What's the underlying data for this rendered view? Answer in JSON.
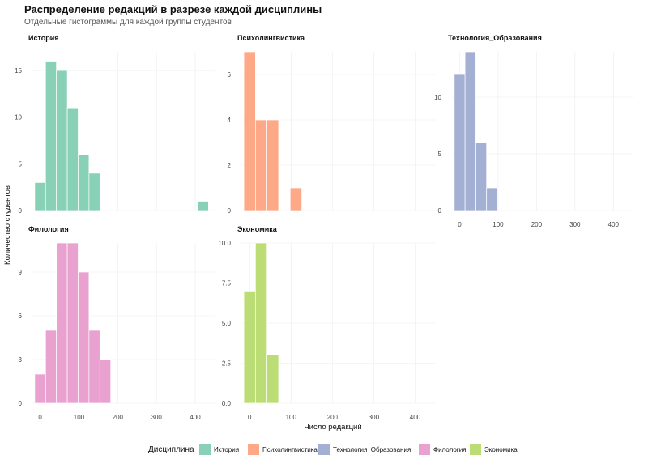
{
  "chart_data": {
    "type": "bar",
    "title": "Распределение редакций в разрезе каждой дисциплины",
    "subtitle": "Отдельные гистограммы для каждой группы студентов",
    "xlabel": "Число редакций",
    "ylabel": "Количество студентов",
    "x_ticks": [
      0,
      100,
      200,
      300,
      400
    ],
    "xlim": [
      -20,
      450
    ],
    "bin_width": 28,
    "grid": true,
    "legend": {
      "title": "Дисциплина",
      "position": "bottom",
      "entries": [
        "История",
        "Психолингвистика",
        "Технология_Образования",
        "Филология",
        "Экономика"
      ]
    },
    "panels": [
      {
        "name": "История",
        "color": "#88d1b6",
        "ylim": [
          0,
          17
        ],
        "y_ticks": [
          0,
          5,
          10,
          15
        ],
        "y_tick_labels": [
          "0",
          "5",
          "10",
          "15"
        ],
        "bins": [
          {
            "x": 0,
            "y": 3
          },
          {
            "x": 28,
            "y": 16
          },
          {
            "x": 56,
            "y": 15
          },
          {
            "x": 84,
            "y": 11
          },
          {
            "x": 112,
            "y": 6
          },
          {
            "x": 140,
            "y": 4
          },
          {
            "x": 420,
            "y": 1
          }
        ]
      },
      {
        "name": "Психолингвистика",
        "color": "#fda886",
        "ylim": [
          0,
          7
        ],
        "y_ticks": [
          0,
          2,
          4,
          6
        ],
        "y_tick_labels": [
          "0",
          "2",
          "4",
          "6"
        ],
        "bins": [
          {
            "x": 0,
            "y": 7
          },
          {
            "x": 28,
            "y": 4
          },
          {
            "x": 56,
            "y": 4
          },
          {
            "x": 112,
            "y": 1
          }
        ]
      },
      {
        "name": "Технология_Образования",
        "color": "#a3b0d3",
        "ylim": [
          0,
          14
        ],
        "y_ticks": [
          0,
          5,
          10
        ],
        "y_tick_labels": [
          "0",
          "5",
          "10"
        ],
        "bins": [
          {
            "x": 0,
            "y": 12
          },
          {
            "x": 28,
            "y": 14
          },
          {
            "x": 56,
            "y": 6
          },
          {
            "x": 84,
            "y": 2
          }
        ]
      },
      {
        "name": "Филология",
        "color": "#e9a2cf",
        "ylim": [
          0,
          11
        ],
        "y_ticks": [
          0,
          3,
          6,
          9
        ],
        "y_tick_labels": [
          "0",
          "3",
          "6",
          "9"
        ],
        "bins": [
          {
            "x": 0,
            "y": 2
          },
          {
            "x": 28,
            "y": 5
          },
          {
            "x": 56,
            "y": 11
          },
          {
            "x": 84,
            "y": 11
          },
          {
            "x": 112,
            "y": 9
          },
          {
            "x": 140,
            "y": 5
          },
          {
            "x": 168,
            "y": 3
          }
        ]
      },
      {
        "name": "Экономика",
        "color": "#bcdd76",
        "ylim": [
          0,
          10
        ],
        "y_ticks": [
          0,
          2.5,
          5,
          7.5,
          10
        ],
        "y_tick_labels": [
          "0.0",
          "2.5",
          "5.0",
          "7.5",
          "10.0"
        ],
        "bins": [
          {
            "x": 0,
            "y": 7
          },
          {
            "x": 28,
            "y": 10
          },
          {
            "x": 56,
            "y": 3
          }
        ]
      }
    ]
  }
}
